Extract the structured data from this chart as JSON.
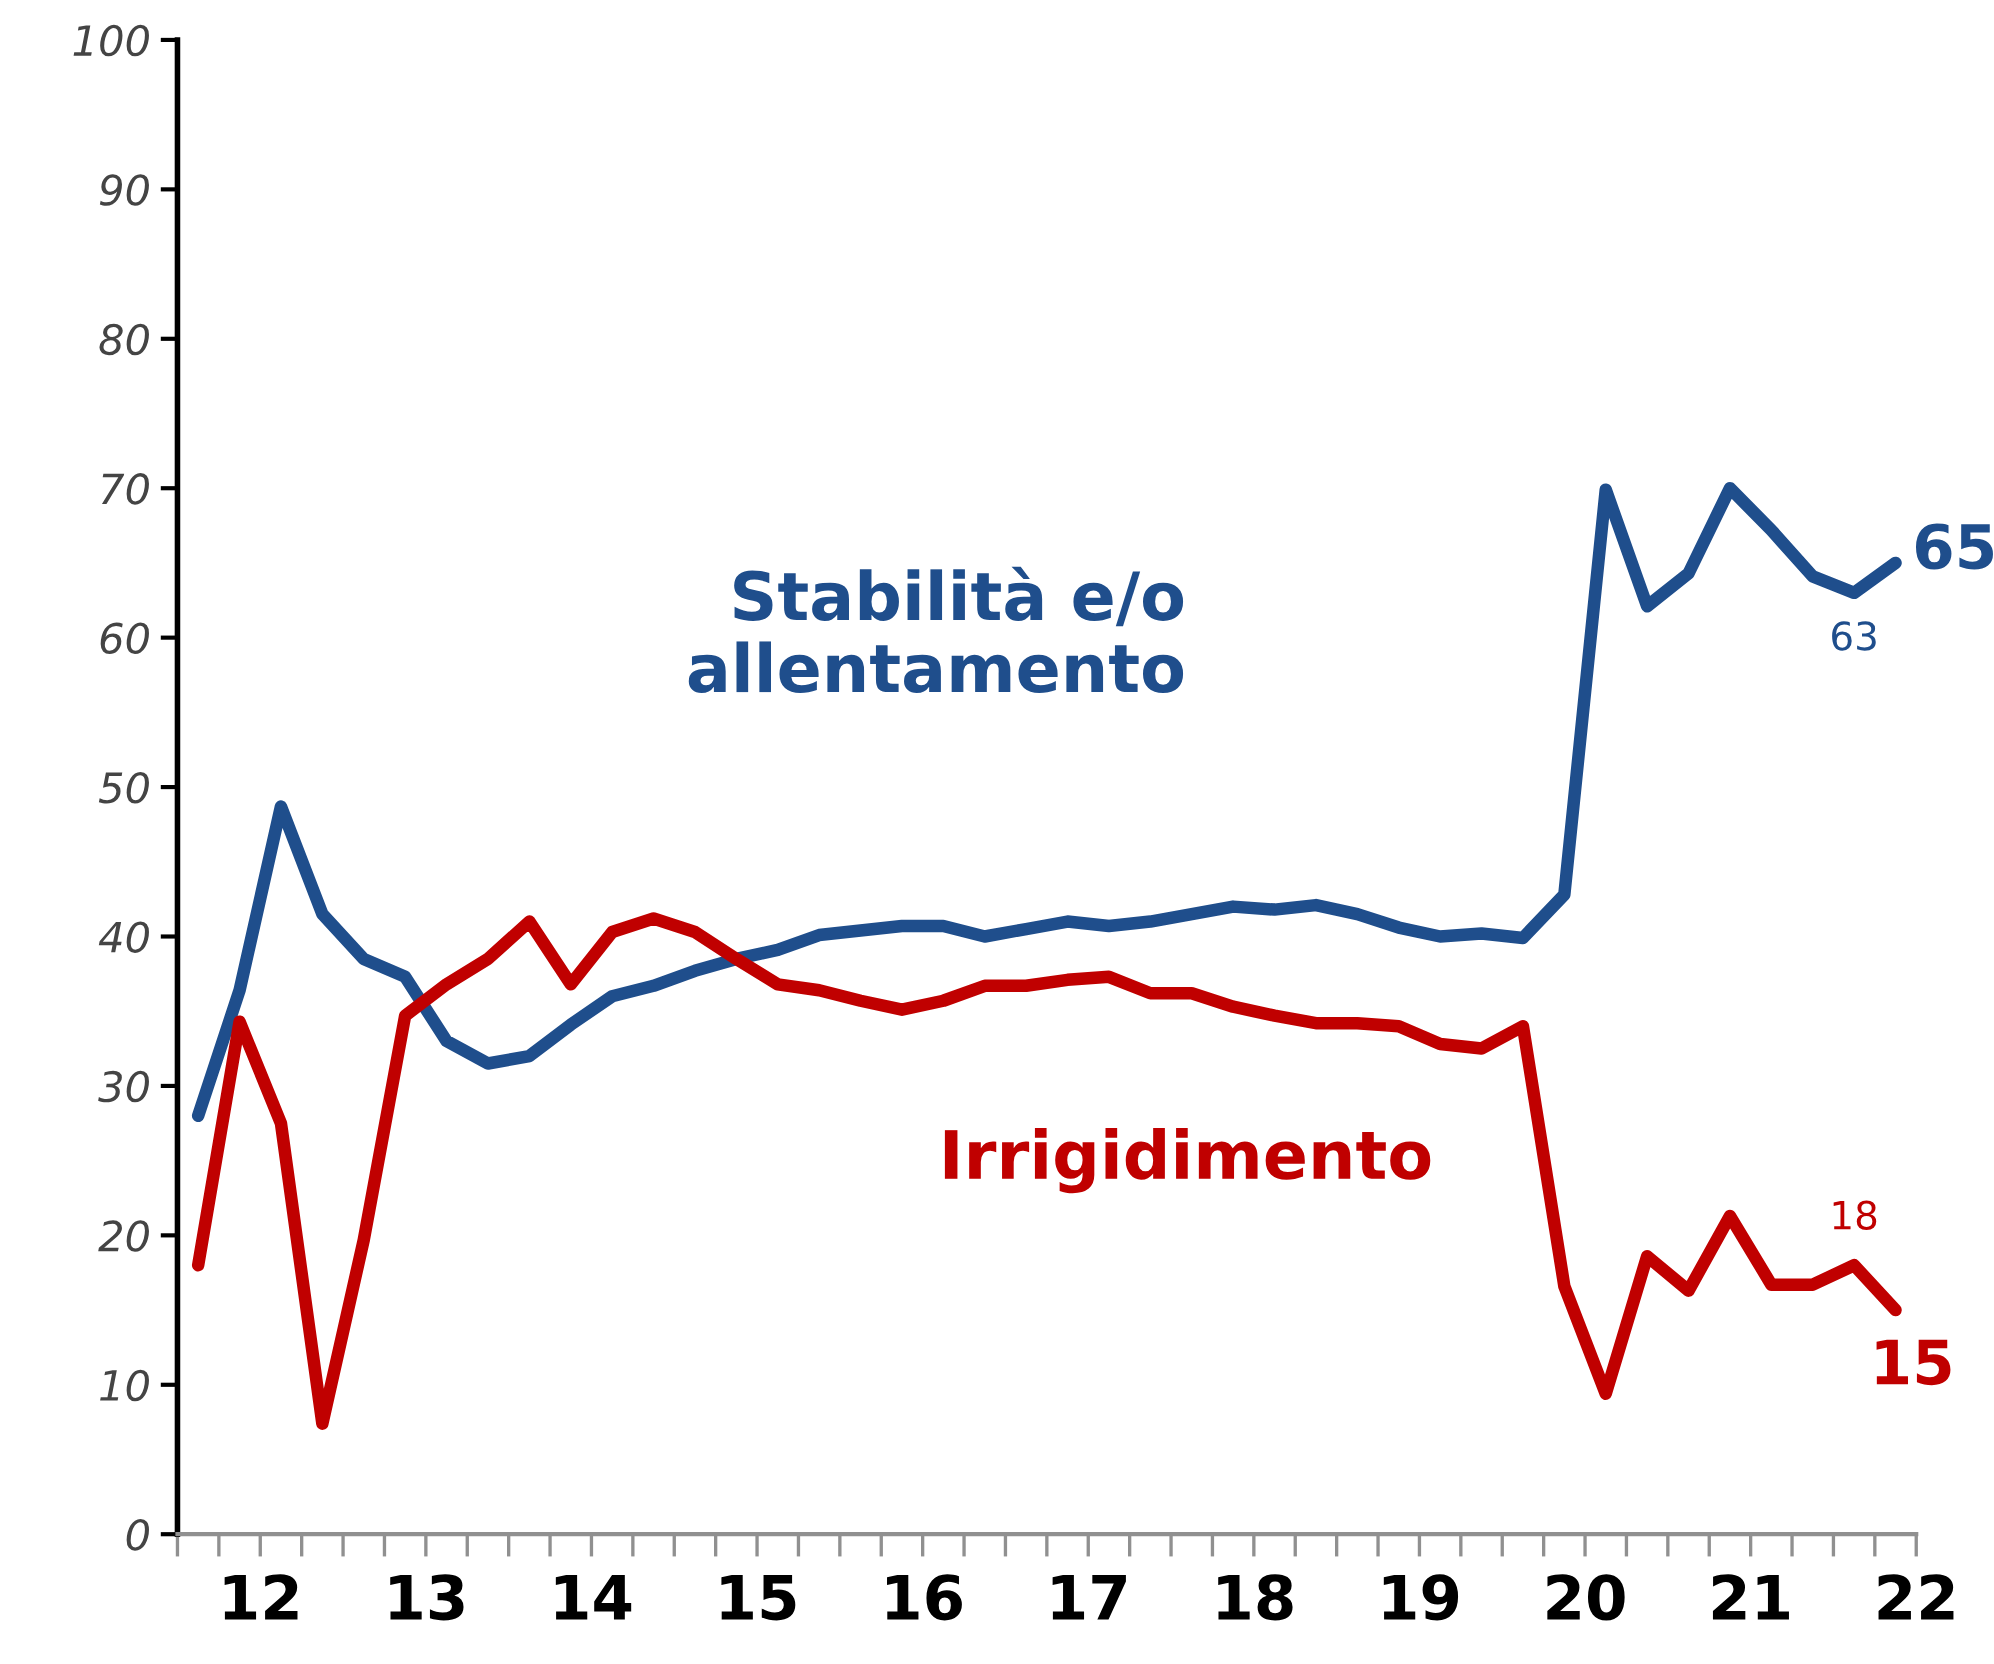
{
  "chart_data": {
    "type": "line",
    "x": [
      12.125,
      12.375,
      12.625,
      12.875,
      13.125,
      13.375,
      13.625,
      13.875,
      14.125,
      14.375,
      14.625,
      14.875,
      15.125,
      15.375,
      15.625,
      15.875,
      16.125,
      16.375,
      16.625,
      16.875,
      17.125,
      17.375,
      17.625,
      17.875,
      18.125,
      18.375,
      18.625,
      18.875,
      19.125,
      19.375,
      19.625,
      19.875,
      20.125,
      20.375,
      20.625,
      20.875,
      21.125,
      21.375,
      21.625,
      21.875,
      22.125,
      22.375
    ],
    "series": [
      {
        "name": "Stabilità e/o\nallentamento",
        "color": "#1f4e8c",
        "values": [
          28,
          36.4,
          48.7,
          41.5,
          38.5,
          37.3,
          33.0,
          31.5,
          32.0,
          34.1,
          36.0,
          36.7,
          37.7,
          38.5,
          39.1,
          40.1,
          40.4,
          40.7,
          40.7,
          40.0,
          40.5,
          41.0,
          40.7,
          41.0,
          41.5,
          42.0,
          41.8,
          42.1,
          41.5,
          40.6,
          40.0,
          40.2,
          39.9,
          42.8,
          69.9,
          62.1,
          64.3,
          70.0,
          67.2,
          64.1,
          63,
          65
        ],
        "value_labels": [
          null,
          null,
          null,
          null,
          null,
          null,
          null,
          null,
          null,
          null,
          null,
          null,
          null,
          null,
          null,
          null,
          null,
          null,
          null,
          null,
          null,
          null,
          null,
          null,
          null,
          null,
          null,
          null,
          null,
          null,
          null,
          null,
          null,
          null,
          null,
          null,
          null,
          null,
          null,
          null,
          "63",
          "65"
        ]
      },
      {
        "name": "Irrigidimento",
        "color": "#c00000",
        "values": [
          18,
          34.3,
          27.5,
          7.4,
          19.7,
          34.7,
          36.8,
          38.5,
          41.0,
          36.8,
          40.3,
          41.2,
          40.3,
          38.5,
          36.8,
          36.4,
          35.7,
          35.1,
          35.7,
          36.7,
          36.7,
          37.1,
          37.3,
          36.2,
          36.2,
          35.3,
          34.7,
          34.2,
          34.2,
          34.0,
          32.8,
          32.5,
          34.0,
          16.6,
          9.4,
          18.6,
          16.3,
          21.3,
          16.7,
          16.7,
          18,
          15
        ],
        "value_labels": [
          null,
          null,
          null,
          null,
          null,
          null,
          null,
          null,
          null,
          null,
          null,
          null,
          null,
          null,
          null,
          null,
          null,
          null,
          null,
          null,
          null,
          null,
          null,
          null,
          null,
          null,
          null,
          null,
          null,
          null,
          null,
          null,
          null,
          null,
          null,
          null,
          null,
          null,
          null,
          null,
          "18",
          "15"
        ]
      }
    ],
    "xlim": [
      12,
      22.5
    ],
    "xticks": [
      {
        "value": 12.5,
        "label": "12"
      },
      {
        "value": 13.5,
        "label": "13"
      },
      {
        "value": 14.5,
        "label": "14"
      },
      {
        "value": 15.5,
        "label": "15"
      },
      {
        "value": 16.5,
        "label": "16"
      },
      {
        "value": 17.5,
        "label": "17"
      },
      {
        "value": 18.5,
        "label": "18"
      },
      {
        "value": 19.5,
        "label": "19"
      },
      {
        "value": 20.5,
        "label": "20"
      },
      {
        "value": 21.5,
        "label": "21"
      },
      {
        "value": 22.5,
        "label": "22"
      },
      {
        "value": 12,
        "label": null
      },
      {
        "value": 12.25,
        "label": null
      },
      {
        "value": 12.5,
        "label": null
      },
      {
        "value": 12.75,
        "label": null
      },
      {
        "value": 13,
        "label": null
      },
      {
        "value": 13.25,
        "label": null
      },
      {
        "value": 13.5,
        "label": null
      },
      {
        "value": 13.75,
        "label": null
      },
      {
        "value": 14,
        "label": null
      },
      {
        "value": 14.25,
        "label": null
      },
      {
        "value": 14.5,
        "label": null
      },
      {
        "value": 14.75,
        "label": null
      },
      {
        "value": 15,
        "label": null
      },
      {
        "value": 15.25,
        "label": null
      },
      {
        "value": 15.5,
        "label": null
      },
      {
        "value": 15.75,
        "label": null
      },
      {
        "value": 16,
        "label": null
      },
      {
        "value": 16.25,
        "label": null
      },
      {
        "value": 16.5,
        "label": null
      },
      {
        "value": 16.75,
        "label": null
      },
      {
        "value": 17,
        "label": null
      },
      {
        "value": 17.25,
        "label": null
      },
      {
        "value": 17.5,
        "label": null
      },
      {
        "value": 17.75,
        "label": null
      },
      {
        "value": 18,
        "label": null
      },
      {
        "value": 18.25,
        "label": null
      },
      {
        "value": 18.5,
        "label": null
      },
      {
        "value": 18.75,
        "label": null
      },
      {
        "value": 19,
        "label": null
      },
      {
        "value": 19.25,
        "label": null
      },
      {
        "value": 19.5,
        "label": null
      },
      {
        "value": 19.75,
        "label": null
      },
      {
        "value": 20,
        "label": null
      },
      {
        "value": 20.25,
        "label": null
      },
      {
        "value": 20.5,
        "label": null
      },
      {
        "value": 20.75,
        "label": null
      },
      {
        "value": 21,
        "label": null
      },
      {
        "value": 21.25,
        "label": null
      },
      {
        "value": 21.5,
        "label": null
      },
      {
        "value": 21.75,
        "label": null
      },
      {
        "value": 22,
        "label": null
      },
      {
        "value": 22.25,
        "label": null
      },
      {
        "value": 22.5,
        "label": null
      }
    ],
    "ylim": [
      0,
      100
    ],
    "yticks": [
      0,
      10,
      20,
      30,
      40,
      50,
      60,
      70,
      80,
      90,
      100
    ],
    "grid": false,
    "legend": false,
    "line_style": "solid"
  }
}
